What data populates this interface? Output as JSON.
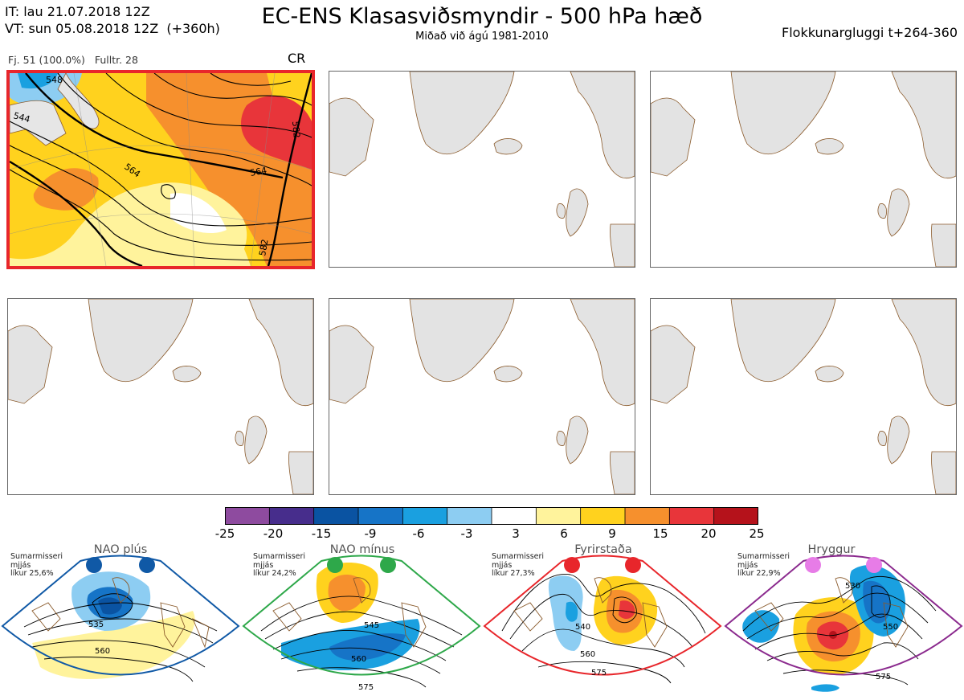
{
  "header": {
    "init_line": "IT: lau 21.07.2018 12Z",
    "valid_line": "VT: sun 05.08.2018 12Z  (+360h)",
    "title": "EC-ENS Klasasviðsmyndir - 500 hPa hæð",
    "subtitle": "Miðað við ágú 1981-2010",
    "window": "Flokkunargluggi t+264-360"
  },
  "panel": {
    "meta": "Fj. 51 (100.0%)   Fulltr. 28",
    "label": "CR",
    "contour_labels": [
      "548",
      "564",
      "564",
      "582",
      "582",
      "544"
    ],
    "highlight_color": "#e8262b"
  },
  "colorbar": {
    "ticks": [
      "-25",
      "-20",
      "-15",
      "-9",
      "-6",
      "-3",
      "3",
      "6",
      "9",
      "15",
      "20",
      "25"
    ],
    "colors": [
      "#8e4b9f",
      "#472d8c",
      "#0a53a2",
      "#1674c7",
      "#1aa0e0",
      "#8dcdf2",
      "#ffffff",
      "#fff39c",
      "#ffd21e",
      "#f6902d",
      "#e8353a",
      "#b5121b"
    ]
  },
  "regimes": [
    {
      "title": "NAO plús",
      "info": [
        "Sumarmisseri",
        "mjjás",
        "líkur 25,6%"
      ],
      "color": "#1059a6",
      "labels": [
        "535",
        "560"
      ]
    },
    {
      "title": "NAO mínus",
      "info": [
        "Sumarmisseri",
        "mjjás",
        "líkur 24,2%"
      ],
      "color": "#2ea84a",
      "labels": [
        "545",
        "560",
        "575"
      ]
    },
    {
      "title": "Fyrirstaða",
      "info": [
        "Sumarmisseri",
        "mjjás",
        "líkur 27,3%"
      ],
      "color": "#e8262b",
      "labels": [
        "540",
        "560",
        "575"
      ]
    },
    {
      "title": "Hryggur",
      "info": [
        "Sumarmisseri",
        "mjjás",
        "líkur 22,9%"
      ],
      "color": "#8b2a8e",
      "labels": [
        "530",
        "550",
        "575"
      ]
    }
  ]
}
